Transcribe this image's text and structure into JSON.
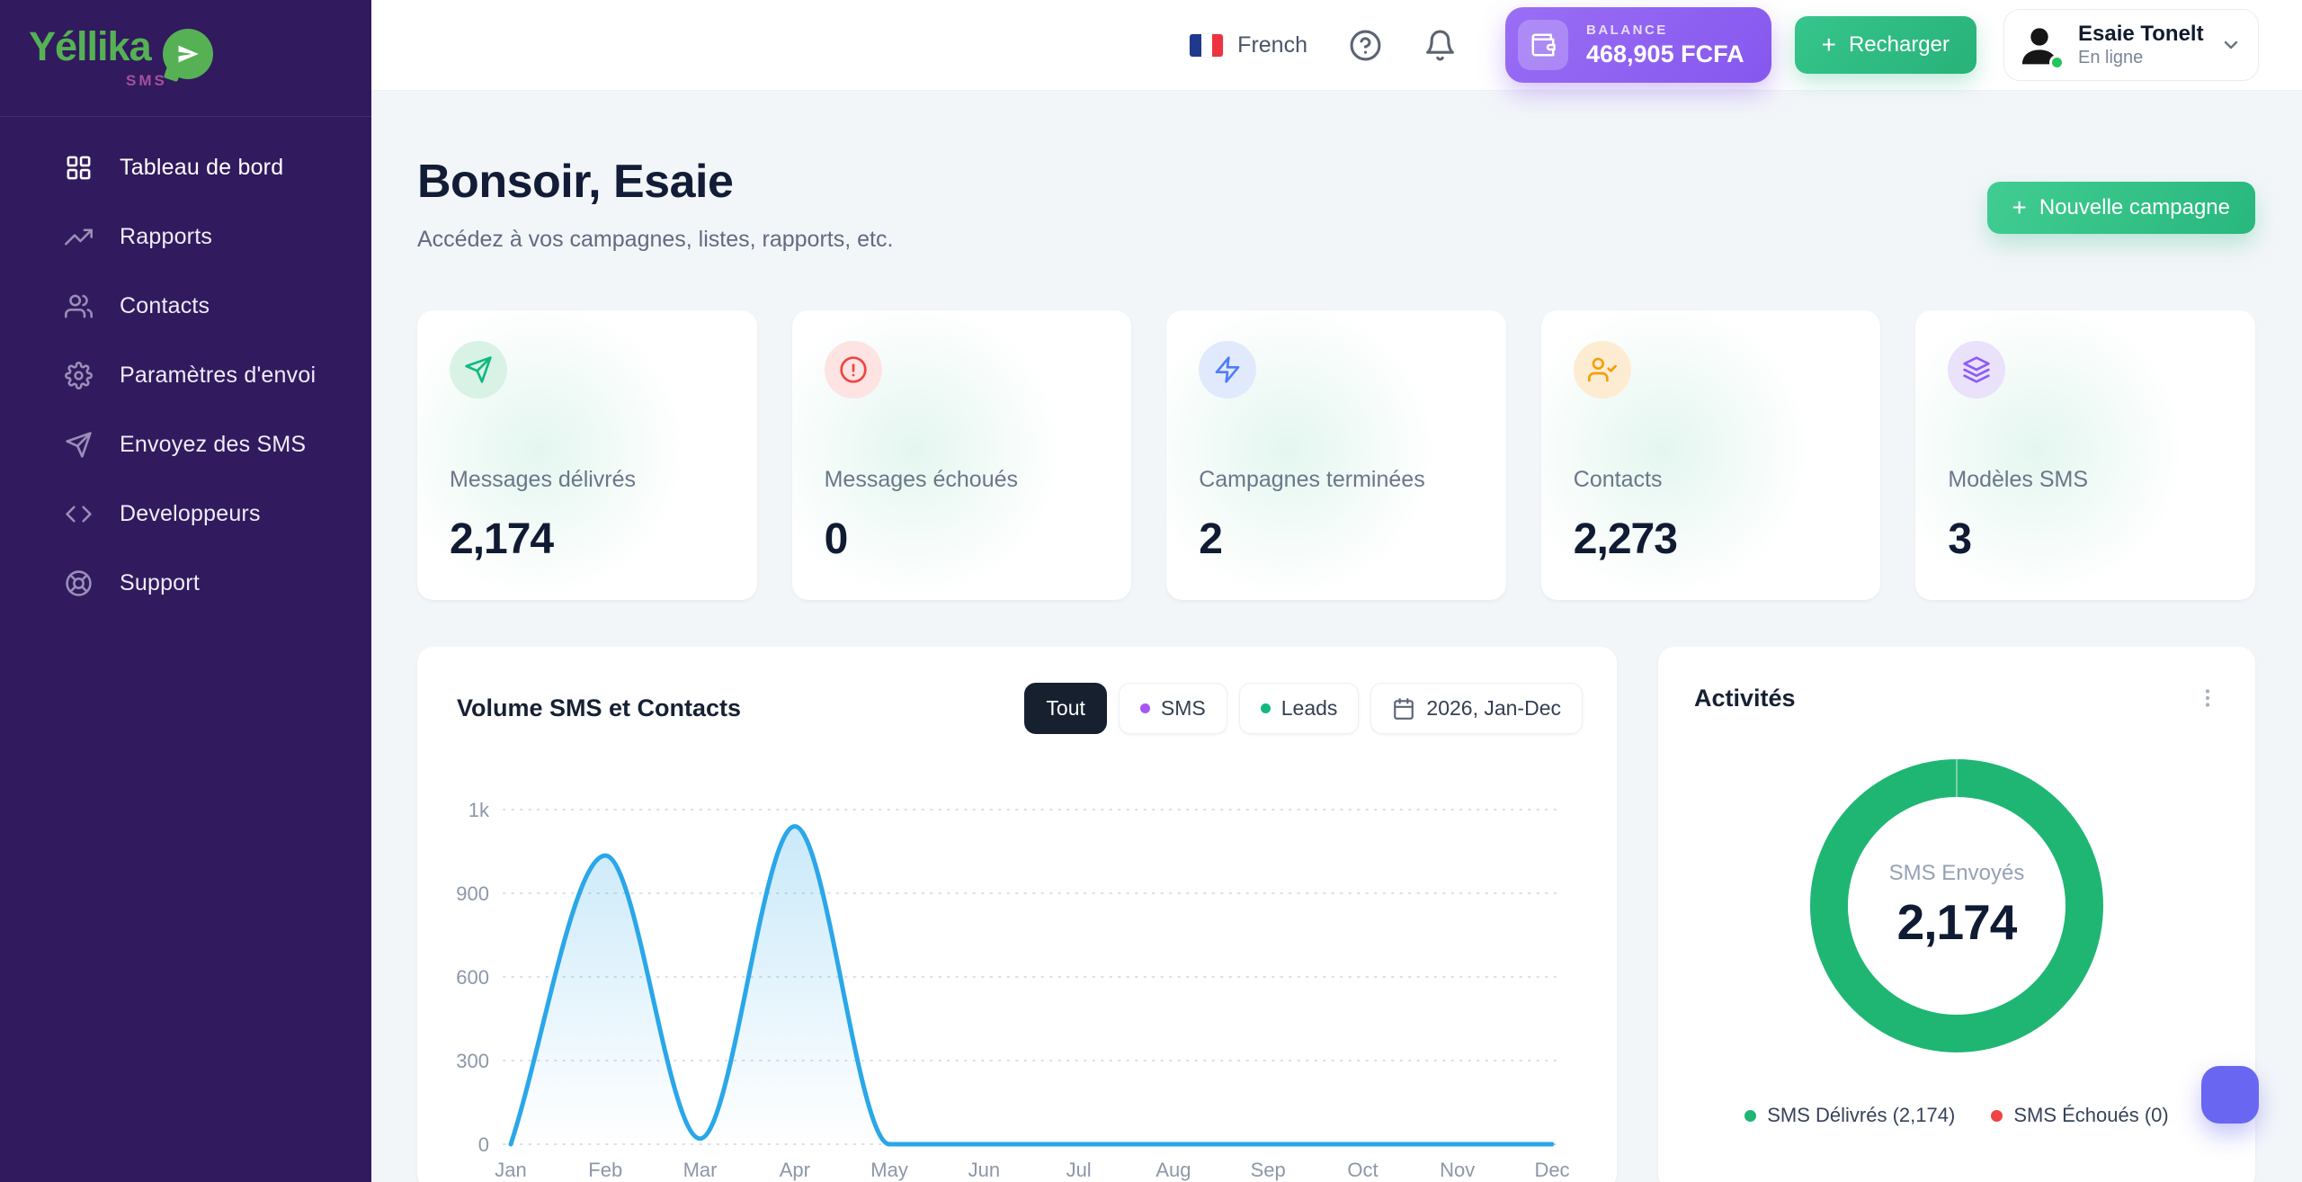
{
  "brand": {
    "name": "Yéllika",
    "product": "SMS"
  },
  "sidebar": {
    "items": [
      {
        "label": "Tableau de bord",
        "active": true
      },
      {
        "label": "Rapports",
        "active": false
      },
      {
        "label": "Contacts",
        "active": false
      },
      {
        "label": "Paramètres d'envoi",
        "active": false
      },
      {
        "label": "Envoyez des SMS",
        "active": false
      },
      {
        "label": "Developpeurs",
        "active": false
      },
      {
        "label": "Support",
        "active": false
      }
    ]
  },
  "topbar": {
    "language": "French",
    "balance": {
      "label": "BALANCE",
      "value": "468,905 FCFA"
    },
    "recharge_label": "Recharger",
    "user": {
      "name": "Esaie Tonelt",
      "status": "En ligne"
    }
  },
  "header": {
    "greeting": "Bonsoir, Esaie",
    "subtitle": "Accédez à vos campagnes, listes, rapports, etc.",
    "new_campaign_label": "Nouvelle campagne"
  },
  "stats": [
    {
      "label": "Messages délivrés",
      "value": "2,174",
      "icon": "send-icon",
      "color": "#10b981",
      "tint": "#d9f2e6"
    },
    {
      "label": "Messages échoués",
      "value": "0",
      "icon": "alert-circle-icon",
      "color": "#ef4444",
      "tint": "#fde3e1"
    },
    {
      "label": "Campagnes terminées",
      "value": "2",
      "icon": "zap-icon",
      "color": "#4e7df8",
      "tint": "#e1e9fd"
    },
    {
      "label": "Contacts",
      "value": "2,273",
      "icon": "user-check-icon",
      "color": "#f59e0b",
      "tint": "#fdecd2"
    },
    {
      "label": "Modèles SMS",
      "value": "3",
      "icon": "layers-icon",
      "color": "#8b5cf6",
      "tint": "#eae1fb"
    }
  ],
  "volume": {
    "title": "Volume SMS et Contacts",
    "filters": [
      {
        "label": "Tout",
        "active": true
      },
      {
        "label": "SMS",
        "active": false,
        "dot": "#a855f7"
      },
      {
        "label": "Leads",
        "active": false,
        "dot": "#10b981"
      }
    ],
    "date_label": "2026, Jan-Dec"
  },
  "chart_data": {
    "type": "line",
    "title": "Volume SMS et Contacts",
    "x": [
      "Jan",
      "Feb",
      "Mar",
      "Apr",
      "May",
      "Jun",
      "Jul",
      "Aug",
      "Sep",
      "Oct",
      "Nov",
      "Dec"
    ],
    "series": [
      {
        "name": "Tout",
        "values": [
          0,
          945,
          20,
          980,
          0,
          0,
          0,
          0,
          0,
          0,
          0,
          0
        ]
      }
    ],
    "ylim": [
      0,
      1000
    ],
    "yticks": {
      "labels": [
        "0",
        "300",
        "600",
        "900",
        "1k"
      ],
      "values": [
        0,
        300,
        600,
        900,
        1000
      ],
      "equally_spaced": true
    },
    "line_color": "#2aa7e8",
    "fill": "light-blue-gradient-under-curve",
    "grid": "dotted-horizontal",
    "legend": "none"
  },
  "activities": {
    "title": "Activités",
    "donut": {
      "type": "donut",
      "center_label": "SMS Envoyés",
      "center_value": "2,174",
      "ring_color": "#1fb673",
      "segments": [
        {
          "label": "SMS Délivrés",
          "value": 2174,
          "color": "#1fb673"
        },
        {
          "label": "SMS Échoués",
          "value": 0,
          "color": "#ef4444"
        }
      ]
    },
    "legend": [
      {
        "label": "SMS Délivrés (2,174)",
        "color": "#1fb673"
      },
      {
        "label": "SMS Échoués (0)",
        "color": "#ef4444"
      }
    ]
  }
}
